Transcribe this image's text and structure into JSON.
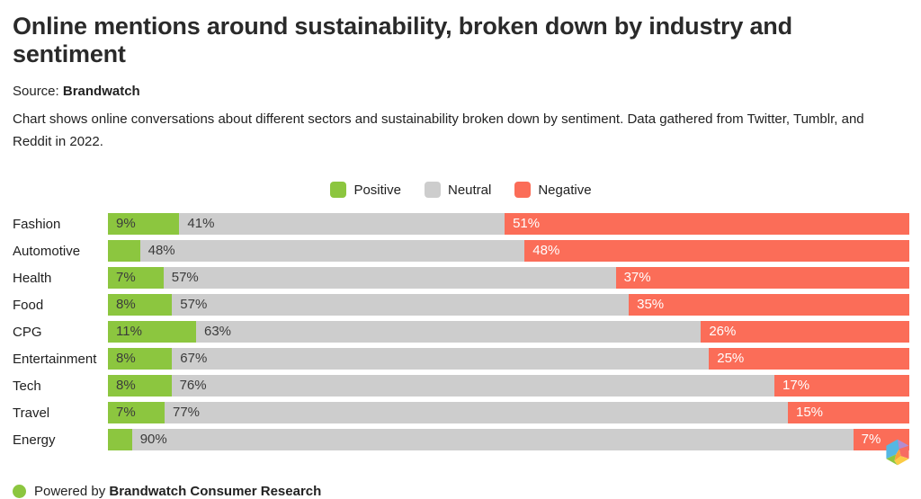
{
  "header": {
    "title": "Online mentions around sustainability, broken down by industry and sentiment",
    "source_label": "Source:",
    "source_name": "Brandwatch",
    "description": "Chart shows online conversations about different sectors and sustainability broken down by sentiment. Data gathered from Twitter, Tumblr, and Reddit in 2022."
  },
  "colors": {
    "positive": "#8CC63F",
    "neutral": "#CDCDCD",
    "negative": "#FB6D58",
    "label_dark": "#3B3B3B",
    "label_light": "#FFFFFF"
  },
  "legend": {
    "items": [
      {
        "label": "Positive",
        "color": "#8CC63F"
      },
      {
        "label": "Neutral",
        "color": "#CDCDCD"
      },
      {
        "label": "Negative",
        "color": "#FB6D58"
      }
    ]
  },
  "chart_data": {
    "type": "bar",
    "stacked": true,
    "orientation": "horizontal",
    "unit": "percent",
    "title": "Online mentions around sustainability, broken down by industry and sentiment",
    "legend_position": "top-center",
    "grid": false,
    "categories": [
      "Fashion",
      "Automotive",
      "Health",
      "Food",
      "CPG",
      "Entertainment",
      "Tech",
      "Travel",
      "Energy"
    ],
    "series": [
      {
        "name": "Positive",
        "color": "#8CC63F",
        "text_color": "#3B3B3B",
        "values": [
          9,
          4,
          7,
          8,
          11,
          8,
          8,
          7,
          3
        ],
        "labels": [
          "9%",
          "",
          "7%",
          "8%",
          "11%",
          "8%",
          "8%",
          "7%",
          ""
        ]
      },
      {
        "name": "Neutral",
        "color": "#CDCDCD",
        "text_color": "#3B3B3B",
        "values": [
          41,
          48,
          57,
          57,
          63,
          67,
          76,
          77,
          90
        ],
        "labels": [
          "41%",
          "48%",
          "57%",
          "57%",
          "63%",
          "67%",
          "76%",
          "77%",
          "90%"
        ]
      },
      {
        "name": "Negative",
        "color": "#FB6D58",
        "text_color": "#FFFFFF",
        "values": [
          51,
          48,
          37,
          35,
          26,
          25,
          17,
          15,
          7
        ],
        "labels": [
          "51%",
          "48%",
          "37%",
          "35%",
          "26%",
          "25%",
          "17%",
          "15%",
          "7%"
        ]
      }
    ]
  },
  "footer": {
    "powered_by": "Powered by",
    "brand": "Brandwatch Consumer Research",
    "dot_color": "#8CC63F",
    "logo_colors": {
      "blue": "#55B7E3",
      "purple": "#B28CD0",
      "red": "#F76C62",
      "orange": "#F9A03C",
      "yellow": "#FBCB45",
      "green": "#8CC63F"
    }
  }
}
